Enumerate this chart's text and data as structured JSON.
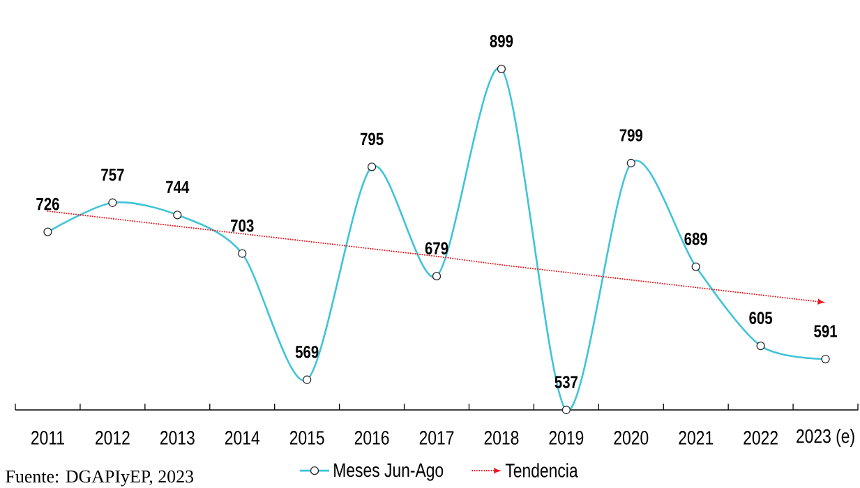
{
  "chart_data": {
    "type": "line",
    "categories": [
      "2011",
      "2012",
      "2013",
      "2014",
      "2015",
      "2016",
      "2017",
      "2018",
      "2019",
      "2020",
      "2021",
      "2022",
      "2023 (e)"
    ],
    "series": [
      {
        "name": "Meses Jun-Ago",
        "color": "#40c4d8",
        "values": [
          726,
          757,
          744,
          703,
          569,
          795,
          679,
          899,
          537,
          799,
          689,
          605,
          591
        ],
        "value_labels": [
          "726",
          "757",
          "744",
          "703",
          "569",
          "795",
          "679",
          "899",
          "537",
          "799",
          "689",
          "605",
          "591"
        ]
      },
      {
        "name": "Tendencia",
        "type": "line",
        "color": "#e8191f",
        "values": [
          748,
          740,
          732,
          724,
          716,
          708,
          700,
          691,
          683,
          675,
          667,
          659,
          651
        ],
        "line_style": "dotted",
        "marker": "none"
      }
    ],
    "marker": "circle",
    "line_style": "solid",
    "legend": "bottom",
    "annotations": [
      "Fuente: DGAPIyEP, 2023"
    ]
  }
}
